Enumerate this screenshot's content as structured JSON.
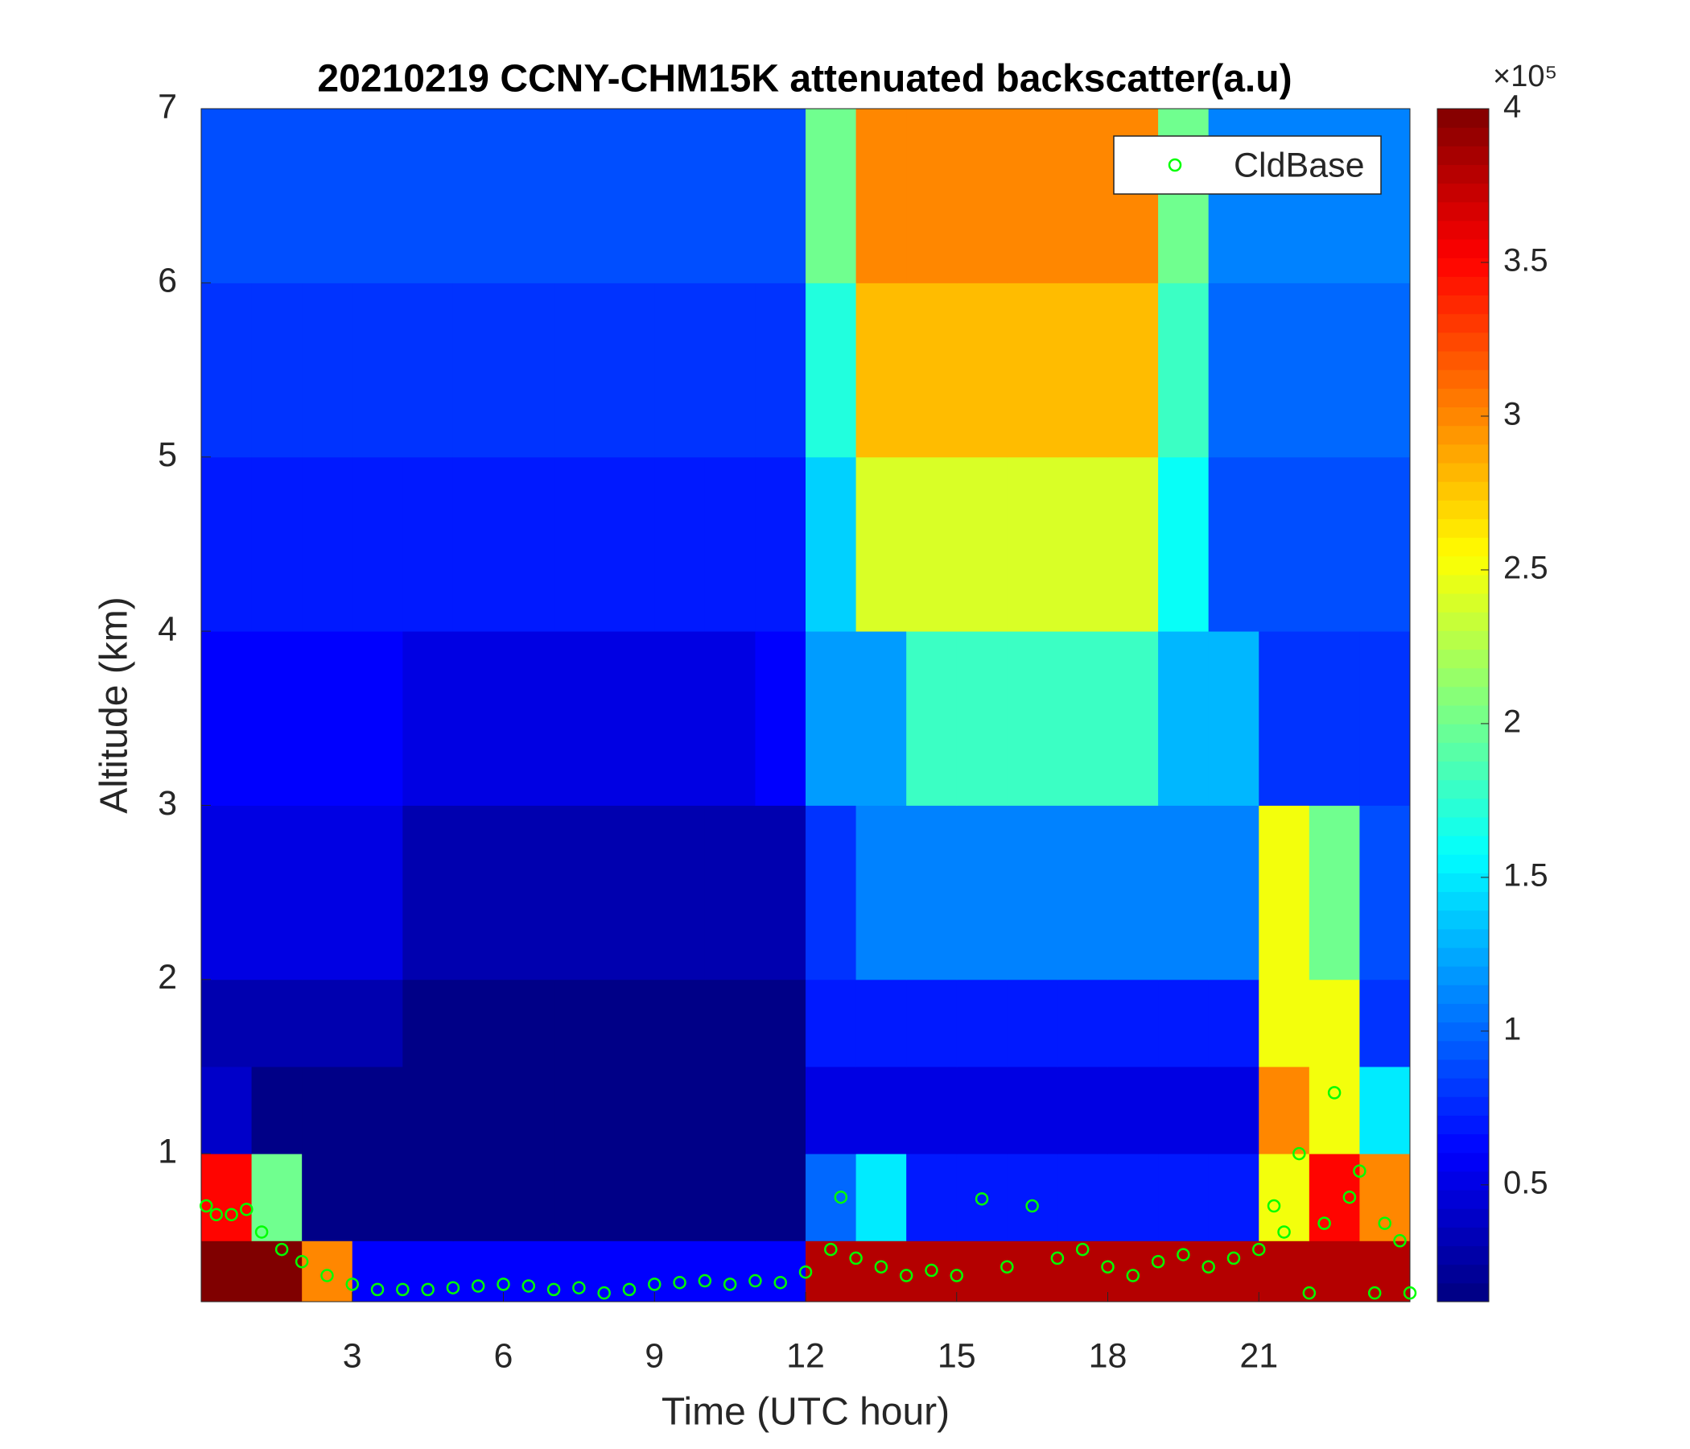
{
  "chart_data": {
    "type": "heatmap",
    "title": "20210219 CCNY-CHM15K attenuated backscatter(a.u)",
    "xlabel": "Time (UTC hour)",
    "ylabel": "Altitude (km)",
    "xlim": [
      0,
      24
    ],
    "xticks": [
      3,
      6,
      9,
      12,
      15,
      18,
      21
    ],
    "ylim": [
      0.15,
      7
    ],
    "yticks": [
      1,
      2,
      3,
      4,
      5,
      6,
      7
    ],
    "x_edges": [
      0,
      1,
      2,
      3,
      4,
      5,
      6,
      7,
      8,
      9,
      10,
      11,
      12,
      13,
      14,
      15,
      16,
      17,
      18,
      19,
      20,
      21,
      22,
      23,
      24
    ],
    "y_edges": [
      0.15,
      0.5,
      1,
      1.5,
      2,
      3,
      4,
      5,
      6,
      7
    ],
    "z": [
      [
        400000,
        400000,
        300000,
        60000,
        60000,
        60000,
        60000,
        60000,
        60000,
        60000,
        60000,
        60000,
        380000,
        380000,
        380000,
        380000,
        380000,
        380000,
        380000,
        380000,
        380000,
        380000,
        380000,
        380000
      ],
      [
        350000,
        200000,
        15000,
        15000,
        15000,
        15000,
        15000,
        15000,
        15000,
        15000,
        15000,
        15000,
        100000,
        150000,
        70000,
        70000,
        70000,
        70000,
        70000,
        70000,
        70000,
        250000,
        350000,
        300000
      ],
      [
        40000,
        15000,
        15000,
        15000,
        15000,
        15000,
        15000,
        15000,
        15000,
        15000,
        15000,
        15000,
        50000,
        50000,
        50000,
        50000,
        50000,
        50000,
        50000,
        50000,
        50000,
        300000,
        250000,
        150000
      ],
      [
        30000,
        30000,
        30000,
        30000,
        15000,
        15000,
        15000,
        15000,
        15000,
        15000,
        15000,
        15000,
        70000,
        70000,
        70000,
        70000,
        70000,
        70000,
        70000,
        70000,
        70000,
        250000,
        250000,
        80000
      ],
      [
        50000,
        50000,
        50000,
        50000,
        30000,
        30000,
        30000,
        30000,
        30000,
        30000,
        30000,
        30000,
        80000,
        110000,
        110000,
        110000,
        110000,
        110000,
        110000,
        110000,
        110000,
        250000,
        200000,
        90000
      ],
      [
        60000,
        60000,
        60000,
        60000,
        50000,
        50000,
        50000,
        50000,
        50000,
        50000,
        50000,
        60000,
        120000,
        120000,
        180000,
        180000,
        180000,
        180000,
        180000,
        130000,
        130000,
        80000,
        80000,
        80000
      ],
      [
        70000,
        70000,
        70000,
        70000,
        70000,
        70000,
        70000,
        70000,
        70000,
        70000,
        70000,
        70000,
        140000,
        240000,
        240000,
        240000,
        240000,
        240000,
        240000,
        160000,
        90000,
        90000,
        90000,
        90000
      ],
      [
        80000,
        80000,
        80000,
        80000,
        80000,
        80000,
        80000,
        80000,
        80000,
        80000,
        80000,
        80000,
        170000,
        280000,
        280000,
        280000,
        280000,
        280000,
        280000,
        180000,
        100000,
        100000,
        100000,
        100000
      ],
      [
        90000,
        90000,
        90000,
        90000,
        90000,
        90000,
        90000,
        90000,
        90000,
        90000,
        90000,
        90000,
        200000,
        300000,
        300000,
        300000,
        300000,
        300000,
        300000,
        200000,
        110000,
        110000,
        110000,
        110000
      ]
    ],
    "colorbar": {
      "colormap": "jet",
      "clim": [
        12000,
        400000
      ],
      "scale_label": "×10⁵",
      "ticks": [
        {
          "value": 50000,
          "label": "0.5"
        },
        {
          "value": 100000,
          "label": "1"
        },
        {
          "value": 150000,
          "label": "1.5"
        },
        {
          "value": 200000,
          "label": "2"
        },
        {
          "value": 250000,
          "label": "2.5"
        },
        {
          "value": 300000,
          "label": "3"
        },
        {
          "value": 350000,
          "label": "3.5"
        },
        {
          "value": 400000,
          "label": "4"
        }
      ]
    },
    "legend": "upper right",
    "series": [
      {
        "name": "CldBase",
        "color": "#00ff00",
        "x": [
          0.1,
          0.3,
          0.6,
          0.9,
          1.2,
          1.6,
          2,
          2.5,
          3,
          3.5,
          4,
          4.5,
          5,
          5.5,
          6,
          6.5,
          7,
          7.5,
          8,
          8.5,
          9,
          9.5,
          10,
          10.5,
          11,
          11.5,
          12,
          12.5,
          12.7,
          13,
          13.5,
          14,
          14.5,
          15,
          15.5,
          16,
          16.5,
          17,
          17.5,
          18,
          18.5,
          19,
          19.5,
          20,
          20.5,
          21,
          21.3,
          21.5,
          21.8,
          22,
          22.3,
          22.5,
          22.8,
          23,
          23.3,
          23.5,
          23.8,
          24
        ],
        "y": [
          0.7,
          0.65,
          0.65,
          0.68,
          0.55,
          0.45,
          0.38,
          0.3,
          0.25,
          0.22,
          0.22,
          0.22,
          0.23,
          0.24,
          0.25,
          0.24,
          0.22,
          0.23,
          0.2,
          0.22,
          0.25,
          0.26,
          0.27,
          0.25,
          0.27,
          0.26,
          0.32,
          0.45,
          0.75,
          0.4,
          0.35,
          0.3,
          0.33,
          0.3,
          0.74,
          0.35,
          0.7,
          0.4,
          0.45,
          0.35,
          0.3,
          0.38,
          0.42,
          0.35,
          0.4,
          0.45,
          0.7,
          0.55,
          1.0,
          0.2,
          0.6,
          1.35,
          0.75,
          0.9,
          0.2,
          0.6,
          0.5,
          0.2
        ]
      }
    ]
  }
}
